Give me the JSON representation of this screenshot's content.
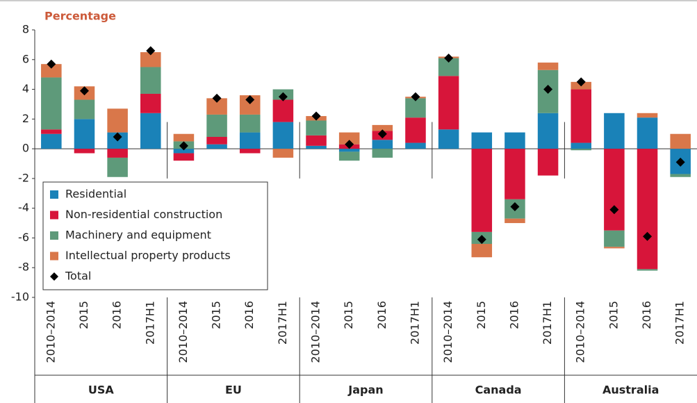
{
  "chart_data": {
    "type": "stacked_bar",
    "axis_label": "Percentage",
    "groups": [
      {
        "name": "USA",
        "categories": [
          "2010–2014",
          "2015",
          "2016",
          "2017H1"
        ]
      },
      {
        "name": "EU",
        "categories": [
          "2010–2014",
          "2015",
          "2016",
          "2017H1"
        ]
      },
      {
        "name": "Japan",
        "categories": [
          "2010–2014",
          "2015",
          "2016",
          "2017H1"
        ]
      },
      {
        "name": "Canada",
        "categories": [
          "2010–2014",
          "2015",
          "2016",
          "2017H1"
        ]
      },
      {
        "name": "Australia",
        "categories": [
          "2010–2014",
          "2015",
          "2016",
          "2017H1"
        ]
      }
    ],
    "series": [
      {
        "name": "Residential",
        "color": "#1a82b8",
        "values": [
          1.0,
          2.0,
          1.1,
          2.4,
          -0.3,
          0.3,
          1.1,
          1.8,
          0.2,
          -0.2,
          0.6,
          0.4,
          1.3,
          1.1,
          1.1,
          2.4,
          0.4,
          2.4,
          2.1,
          -1.7
        ]
      },
      {
        "name": "Non-residential construction",
        "color": "#d7153a",
        "values": [
          0.3,
          -0.3,
          -0.6,
          1.3,
          -0.5,
          0.5,
          -0.3,
          1.5,
          0.7,
          0.3,
          0.6,
          1.7,
          3.6,
          -5.6,
          -3.4,
          -1.8,
          3.6,
          -5.5,
          -8.1,
          0
        ]
      },
      {
        "name": "Machinery and equipment",
        "color": "#5e9a7a",
        "values": [
          3.5,
          1.3,
          -1.3,
          1.8,
          0.5,
          1.5,
          1.2,
          0.7,
          1.0,
          -0.6,
          -0.6,
          1.3,
          1.2,
          -0.8,
          -1.3,
          2.9,
          -0.1,
          -1.1,
          -0.1,
          -0.2
        ]
      },
      {
        "name": "Intellectual property products",
        "color": "#d9774a",
        "values": [
          0.9,
          0.9,
          1.6,
          1.0,
          0.5,
          1.1,
          1.3,
          -0.6,
          0.3,
          0.8,
          0.4,
          0.1,
          0.1,
          -0.9,
          -0.3,
          0.5,
          0.5,
          -0.1,
          0.3,
          1.0
        ]
      }
    ],
    "total": {
      "name": "Total",
      "color": "#000000",
      "values": [
        5.7,
        3.9,
        0.8,
        6.6,
        0.2,
        3.4,
        3.3,
        3.5,
        2.2,
        0.3,
        1.0,
        3.5,
        6.1,
        -6.1,
        -3.9,
        4.0,
        4.5,
        -4.1,
        -5.9,
        -0.9
      ]
    },
    "ylim": [
      -10,
      8
    ],
    "yticks": [
      -10,
      -8,
      -6,
      -4,
      -2,
      0,
      2,
      4,
      6,
      8
    ]
  }
}
